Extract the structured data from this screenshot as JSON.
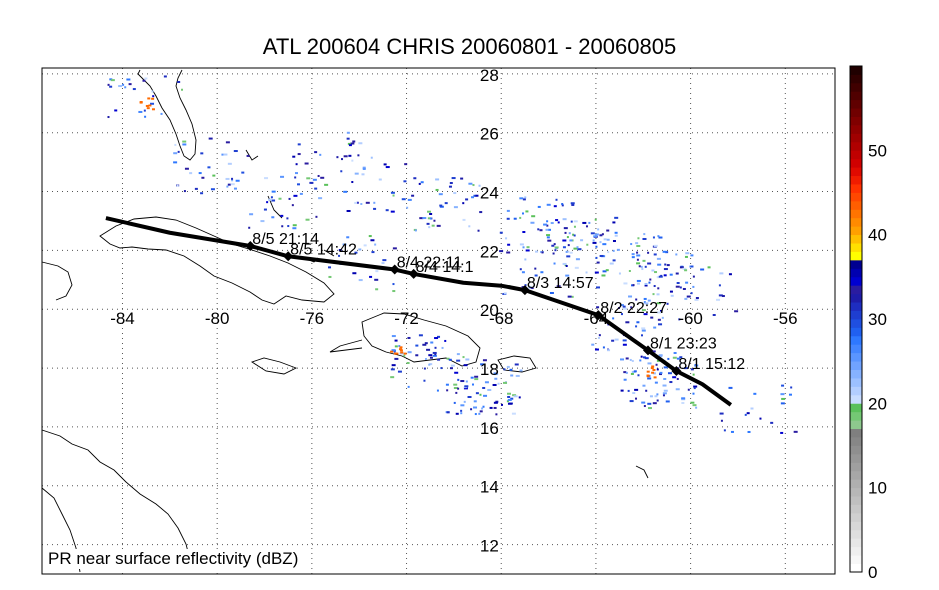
{
  "title": "ATL 200604 CHRIS 20060801 - 20060805",
  "caption": "PR near surface reflectivity (dBZ)",
  "lat_labels": [
    "28",
    "26",
    "24",
    "22",
    "20",
    "18",
    "16",
    "14",
    "12"
  ],
  "lon_labels": [
    "-84",
    "-80",
    "-76",
    "-72",
    "-68",
    "-64",
    "-60",
    "-56"
  ],
  "track": {
    "color": "#000000",
    "points": [
      {
        "lon": -84.7,
        "lat": 23.1
      },
      {
        "lon": -82.0,
        "lat": 22.6
      },
      {
        "lon": -78.6,
        "lat": 22.15
      },
      {
        "lon": -77.0,
        "lat": 21.8
      },
      {
        "lon": -72.5,
        "lat": 21.35
      },
      {
        "lon": -71.7,
        "lat": 21.2
      },
      {
        "lon": -69.6,
        "lat": 20.9
      },
      {
        "lon": -68.0,
        "lat": 20.8
      },
      {
        "lon": -67.0,
        "lat": 20.65
      },
      {
        "lon": -63.9,
        "lat": 19.8
      },
      {
        "lon": -61.8,
        "lat": 18.6
      },
      {
        "lon": -60.6,
        "lat": 17.9
      },
      {
        "lon": -59.5,
        "lat": 17.45
      },
      {
        "lon": -58.3,
        "lat": 16.75
      }
    ],
    "fixes": [
      {
        "label": "8/5 21:14",
        "lon": -78.6,
        "lat": 22.15
      },
      {
        "label": "8/5 14:42",
        "lon": -77.0,
        "lat": 21.8
      },
      {
        "label": "8/4 22:11",
        "lon": -72.5,
        "lat": 21.35
      },
      {
        "label": "8/4 14:1",
        "lon": -71.7,
        "lat": 21.2
      },
      {
        "label": "8/3 14:57",
        "lon": -67.0,
        "lat": 20.65
      },
      {
        "label": "8/2 22:27",
        "lon": -63.9,
        "lat": 19.8
      },
      {
        "label": "8/1 23:23",
        "lon": -61.8,
        "lat": 18.6
      },
      {
        "label": "8/1 15:12",
        "lon": -60.6,
        "lat": 17.9
      }
    ]
  },
  "colorbar": {
    "min": 0,
    "max": 60,
    "tick_labels": [
      "0",
      "10",
      "20",
      "30",
      "40",
      "50"
    ],
    "colors": [
      "#ffffff",
      "#f7f7f7",
      "#efefef",
      "#e7e7e7",
      "#dfdfdf",
      "#d7d7d7",
      "#cfcfcf",
      "#c7c7c7",
      "#bfbfbf",
      "#b7b7b7",
      "#afafaf",
      "#a7a7a7",
      "#9f9f9f",
      "#979797",
      "#8f8f8f",
      "#878787",
      "#7f7f7f",
      "#8ec98e",
      "#74c874",
      "#5ac15a",
      "#c9ddff",
      "#b3ceff",
      "#9cc0ff",
      "#86b2ff",
      "#70a3ff",
      "#5a95ff",
      "#4486ff",
      "#2e78ff",
      "#2060f0",
      "#1f4fe0",
      "#1e3ed0",
      "#1e2dc0",
      "#1e1ca8",
      "#2a1ca0",
      "#0000d0",
      "#0000b0",
      "#000090",
      "#ffff00",
      "#ffe000",
      "#ffc000",
      "#ffa000",
      "#ff8a00",
      "#ff7400",
      "#ff5e00",
      "#ff4800",
      "#ff3200",
      "#f01c00",
      "#e00a00",
      "#d00000",
      "#c00000",
      "#b00000",
      "#a00000",
      "#900000",
      "#800000",
      "#700000",
      "#600000",
      "#500000",
      "#400000",
      "#300000",
      "#200000"
    ]
  },
  "storm_color": "#ff6a00"
}
